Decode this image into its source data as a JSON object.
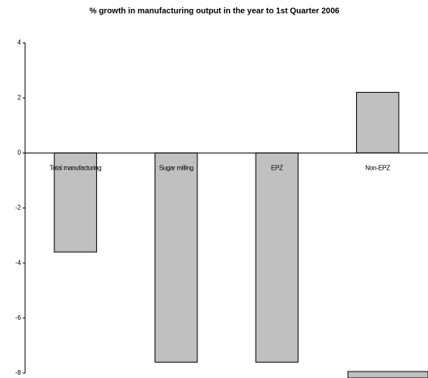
{
  "chart_data": {
    "type": "bar",
    "title": "% growth in manufacturing output in the year to 1st Quarter 2006",
    "categories": [
      "Total manufacturing",
      "Sugar milling",
      "EPZ",
      "Non-EPZ"
    ],
    "values": [
      -3.6,
      -7.6,
      -7.6,
      2.2
    ],
    "color": "#c0c0c0",
    "ylim": [
      -8,
      4
    ],
    "yticks": [
      -8,
      -6,
      -4,
      -2,
      0,
      2,
      4
    ],
    "grid": false
  }
}
